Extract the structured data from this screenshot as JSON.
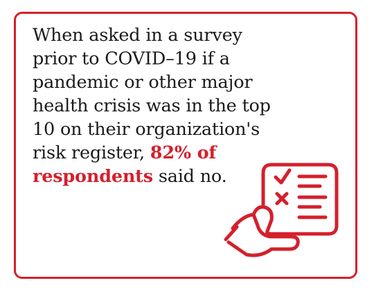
{
  "statement": {
    "line1": "When asked in a survey",
    "line2": "prior to COVID–19 if a",
    "line3": "pandemic or other major",
    "line4": "health crisis was in the top",
    "line5": "10 on their organization's",
    "line6_prefix": "risk register, ",
    "highlight_part1": "82% of",
    "highlight_part2": "respondents",
    "line7_suffix": " said no."
  },
  "colors": {
    "accent": "#d4202c",
    "text": "#1a1a1a",
    "background": "#ffffff"
  },
  "icons": {
    "illustration": "hand-holding-checklist-icon"
  }
}
